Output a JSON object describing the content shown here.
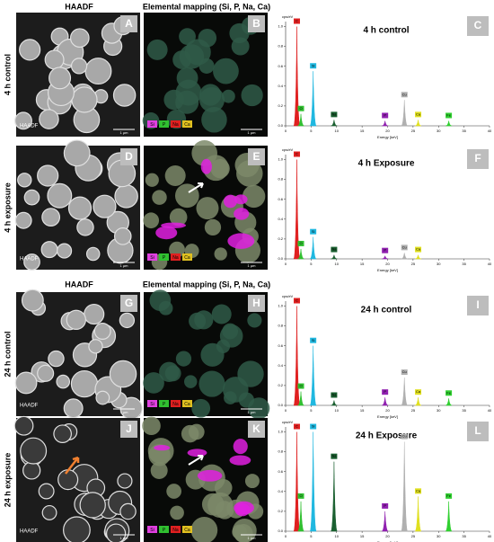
{
  "columns": {
    "haadf": "HAADF",
    "mapping": "Elemental mapping (Si, P, Na, Ca)"
  },
  "panels": [
    {
      "label": "4 h control",
      "haadf_letter": "A",
      "haadf_tag": "HAADF",
      "map_letter": "B",
      "legend": [
        "Si",
        "P",
        "Na",
        "Ca"
      ],
      "chart_letter": "C",
      "scale": "1 µm"
    },
    {
      "label": "4 h exposure",
      "haadf_letter": "D",
      "haadf_tag": "HAADF",
      "map_letter": "E",
      "legend": [
        "Si",
        "P",
        "Na",
        "Ca"
      ],
      "chart_letter": "F",
      "scale": "1 µm"
    },
    {
      "label": "24 h control",
      "haadf_letter": "G",
      "haadf_tag": "HAADF",
      "map_letter": "H",
      "legend": [
        "Si",
        "P",
        "Na",
        "Ca"
      ],
      "chart_letter": "I",
      "scale": "1 µm"
    },
    {
      "label": "24 h exposure",
      "haadf_letter": "J",
      "haadf_tag": "HAADF",
      "map_letter": "K",
      "legend": [
        "Si",
        "P",
        "Na",
        "Ca"
      ],
      "chart_letter": "L",
      "scale": "1 µm"
    }
  ],
  "chart_data": [
    {
      "type": "area",
      "title": "4 h control",
      "ylabel": "cps/eV",
      "xlabel": "Energy [keV]",
      "xlim": [
        0,
        40
      ],
      "xticks": [
        0,
        5,
        10,
        15,
        20,
        25,
        30,
        35,
        40
      ],
      "ylim": [
        0,
        1.05
      ],
      "yticks": [
        {
          "value": 0,
          "label": "0.0"
        },
        {
          "value": 0.2,
          "label": "0.2"
        },
        {
          "value": 0.4,
          "label": "0.4"
        },
        {
          "value": 0.6,
          "label": "0.6"
        },
        {
          "value": 0.8,
          "label": "0.8"
        },
        {
          "value": 1,
          "label": "1.0"
        }
      ],
      "peaks": [
        {
          "element": "C",
          "x": 2.2,
          "value": 1.0,
          "color": "#e02020"
        },
        {
          "element": "O",
          "x": 3.0,
          "value": 0.12,
          "color": "#30c030"
        },
        {
          "element": "Si",
          "x": 5.4,
          "value": 0.55,
          "color": "#20b8e0"
        },
        {
          "element": "Na",
          "x": 9.5,
          "value": 0.06,
          "color": "#1a6030"
        },
        {
          "element": "P",
          "x": 19.5,
          "value": 0.05,
          "color": "#9020b0"
        },
        {
          "element": "Cu",
          "x": 23.3,
          "value": 0.26,
          "color": "#b0b0b0"
        },
        {
          "element": "Ca",
          "x": 26.0,
          "value": 0.06,
          "color": "#e0e020"
        },
        {
          "element": "Fe",
          "x": 32.0,
          "value": 0.05,
          "color": "#30d030"
        }
      ]
    },
    {
      "type": "area",
      "title": "4 h Exposure",
      "ylabel": "cps/eV",
      "xlabel": "Energy [keV]",
      "xlim": [
        0,
        40
      ],
      "xticks": [
        0,
        5,
        10,
        15,
        20,
        25,
        30,
        35,
        40
      ],
      "ylim": [
        0,
        1.05
      ],
      "yticks": [
        {
          "value": 0,
          "label": "0.0"
        },
        {
          "value": 0.2,
          "label": "0.2"
        },
        {
          "value": 0.4,
          "label": "0.4"
        },
        {
          "value": 0.6,
          "label": "0.6"
        },
        {
          "value": 0.8,
          "label": "0.8"
        },
        {
          "value": 1,
          "label": "1.0"
        }
      ],
      "peaks": [
        {
          "element": "C",
          "x": 2.2,
          "value": 1.0,
          "color": "#e02020"
        },
        {
          "element": "O",
          "x": 3.0,
          "value": 0.1,
          "color": "#30c030"
        },
        {
          "element": "Si",
          "x": 5.4,
          "value": 0.22,
          "color": "#20b8e0"
        },
        {
          "element": "Na",
          "x": 9.5,
          "value": 0.04,
          "color": "#1a6030"
        },
        {
          "element": "P",
          "x": 19.5,
          "value": 0.03,
          "color": "#9020b0"
        },
        {
          "element": "Cu",
          "x": 23.3,
          "value": 0.06,
          "color": "#b0b0b0"
        },
        {
          "element": "Ca",
          "x": 26.0,
          "value": 0.04,
          "color": "#e0e020"
        }
      ]
    },
    {
      "type": "area",
      "title": "24 h control",
      "ylabel": "cps/eV",
      "xlabel": "Energy [keV]",
      "xlim": [
        0,
        40
      ],
      "xticks": [
        0,
        5,
        10,
        15,
        20,
        25,
        30,
        35,
        40
      ],
      "ylim": [
        0,
        1.05
      ],
      "yticks": [
        {
          "value": 0,
          "label": "0.0"
        },
        {
          "value": 0.2,
          "label": "0.2"
        },
        {
          "value": 0.4,
          "label": "0.4"
        },
        {
          "value": 0.6,
          "label": "0.6"
        },
        {
          "value": 0.8,
          "label": "0.8"
        },
        {
          "value": 1,
          "label": "1.0"
        }
      ],
      "peaks": [
        {
          "element": "C",
          "x": 2.2,
          "value": 1.0,
          "color": "#e02020"
        },
        {
          "element": "O",
          "x": 3.0,
          "value": 0.14,
          "color": "#30c030"
        },
        {
          "element": "Si",
          "x": 5.4,
          "value": 0.6,
          "color": "#20b8e0"
        },
        {
          "element": "Na",
          "x": 9.5,
          "value": 0.05,
          "color": "#1a6030"
        },
        {
          "element": "P",
          "x": 19.5,
          "value": 0.08,
          "color": "#9020b0"
        },
        {
          "element": "Cu",
          "x": 23.3,
          "value": 0.28,
          "color": "#b0b0b0"
        },
        {
          "element": "Ca",
          "x": 26.0,
          "value": 0.08,
          "color": "#e0e020"
        },
        {
          "element": "Fe",
          "x": 32.0,
          "value": 0.07,
          "color": "#30d030"
        }
      ]
    },
    {
      "type": "area",
      "title": "24 h Exposure",
      "ylabel": "cps/eV",
      "xlabel": "Energy [keV]",
      "xlim": [
        0,
        40
      ],
      "xticks": [
        0,
        5,
        10,
        15,
        20,
        25,
        30,
        35,
        40
      ],
      "ylim": [
        0,
        1.05
      ],
      "yticks": [
        {
          "value": 0,
          "label": "0.0"
        },
        {
          "value": 0.2,
          "label": "0.2"
        },
        {
          "value": 0.4,
          "label": "0.4"
        },
        {
          "value": 0.6,
          "label": "0.6"
        },
        {
          "value": 0.8,
          "label": "0.8"
        },
        {
          "value": 1,
          "label": "1.0"
        }
      ],
      "peaks": [
        {
          "element": "C",
          "x": 2.2,
          "value": 1.0,
          "color": "#e02020"
        },
        {
          "element": "O",
          "x": 3.0,
          "value": 0.3,
          "color": "#30c030"
        },
        {
          "element": "Si",
          "x": 5.4,
          "value": 1.0,
          "color": "#20b8e0"
        },
        {
          "element": "Na",
          "x": 9.5,
          "value": 0.7,
          "color": "#1a6030"
        },
        {
          "element": "P",
          "x": 19.5,
          "value": 0.2,
          "color": "#9020b0"
        },
        {
          "element": "Cu",
          "x": 23.3,
          "value": 0.9,
          "color": "#b0b0b0"
        },
        {
          "element": "Ca",
          "x": 26.0,
          "value": 0.35,
          "color": "#e0e020"
        },
        {
          "element": "Fe",
          "x": 32.0,
          "value": 0.3,
          "color": "#30d030"
        }
      ]
    }
  ]
}
